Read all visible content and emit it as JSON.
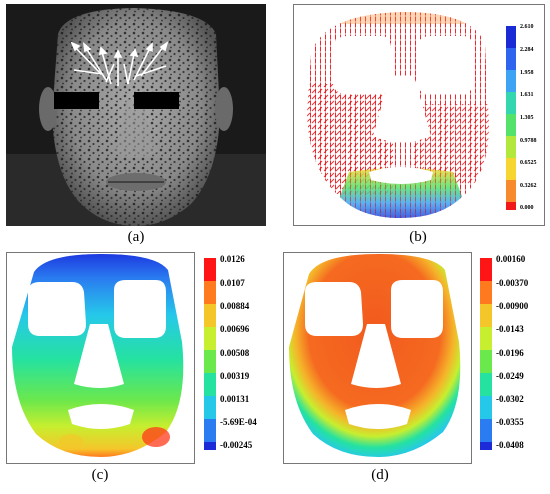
{
  "captions": {
    "a": "(a)",
    "b": "(b)",
    "c": "(c)",
    "d": "(d)"
  },
  "panel_b_colorbar": [
    "2.610",
    "2.284",
    "1.958",
    "1.631",
    "1.305",
    "0.9788",
    "0.6525",
    "0.3262",
    "0.000"
  ],
  "panel_c_colorbar": [
    "0.0126",
    "0.0107",
    "0.00884",
    "0.00696",
    "0.00508",
    "0.00319",
    "0.00131",
    "-5.69E-04",
    "-0.00245"
  ],
  "panel_d_colorbar": [
    "0.00160",
    "-0.00370",
    "-0.00900",
    "-0.0143",
    "-0.0196",
    "-0.0249",
    "-0.0302",
    "-0.0355",
    "-0.0408"
  ],
  "colors": {
    "cb_b": [
      "#1a2bd6",
      "#2e64ee",
      "#3ea3f2",
      "#34d6b0",
      "#55e26a",
      "#b2e83c",
      "#f6d531",
      "#f78a2d",
      "#f01818"
    ],
    "cb_cd": [
      "#ff1515",
      "#ff7a1f",
      "#f5c62a",
      "#c7ee2f",
      "#6be84c",
      "#25e2a0",
      "#26c8ea",
      "#2a7cf0",
      "#1d2ad8"
    ]
  }
}
